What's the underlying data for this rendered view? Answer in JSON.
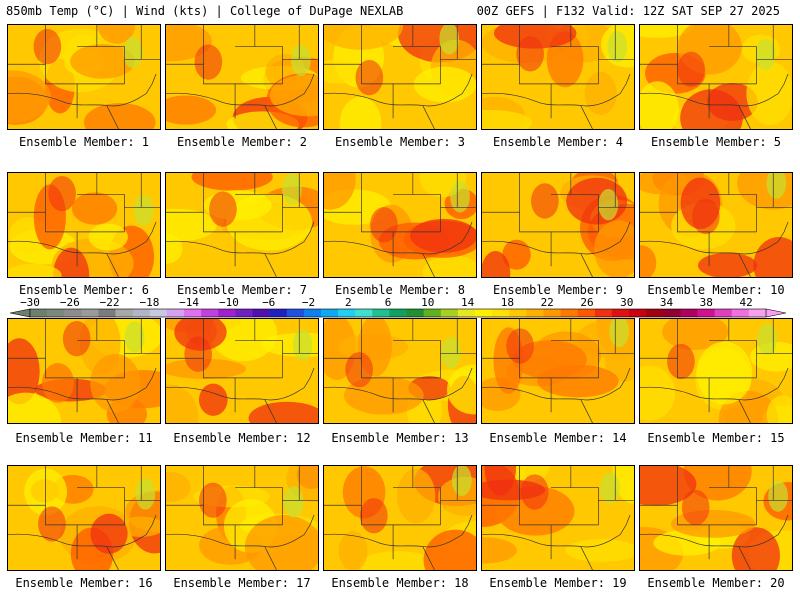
{
  "header": {
    "left": "850mb Temp (°C) | Wind (kts) | College of DuPage NEXLAB",
    "right": "00Z GEFS | F132 Valid: 12Z SAT SEP 27 2025"
  },
  "member_label_prefix": "Ensemble Member: ",
  "members": [
    1,
    2,
    3,
    4,
    5,
    6,
    7,
    8,
    9,
    10,
    11,
    12,
    13,
    14,
    15,
    16,
    17,
    18,
    19,
    20
  ],
  "colorbar": {
    "tick_labels": [
      "-30",
      "-26",
      "-22",
      "-18",
      "-14",
      "-10",
      "-6",
      "-2",
      "2",
      "6",
      "10",
      "14",
      "18",
      "22",
      "26",
      "30",
      "34",
      "38",
      "42"
    ],
    "min": -30,
    "max": 44,
    "step": 2,
    "colors": [
      "#6e7f6e",
      "#7a8a7a",
      "#8c8c8c",
      "#9a9a9a",
      "#7c7c7c",
      "#a8a8a8",
      "#b4b4c8",
      "#c8c8e0",
      "#d8a0f0",
      "#e070f0",
      "#c040e0",
      "#a020d0",
      "#7020c0",
      "#5010b0",
      "#2020c0",
      "#2050e0",
      "#1080f0",
      "#10a8f0",
      "#20d0f0",
      "#40e0d0",
      "#20c090",
      "#10a060",
      "#209030",
      "#60b020",
      "#a8d020",
      "#e8e820",
      "#fff000",
      "#ffe000",
      "#ffc800",
      "#ffb000",
      "#ff9800",
      "#ff7800",
      "#ff5800",
      "#f03010",
      "#e01010",
      "#c80010",
      "#a00010",
      "#900030",
      "#b00060",
      "#d01090",
      "#e040c0",
      "#f070e0",
      "#f8a0f0"
    ]
  }
}
